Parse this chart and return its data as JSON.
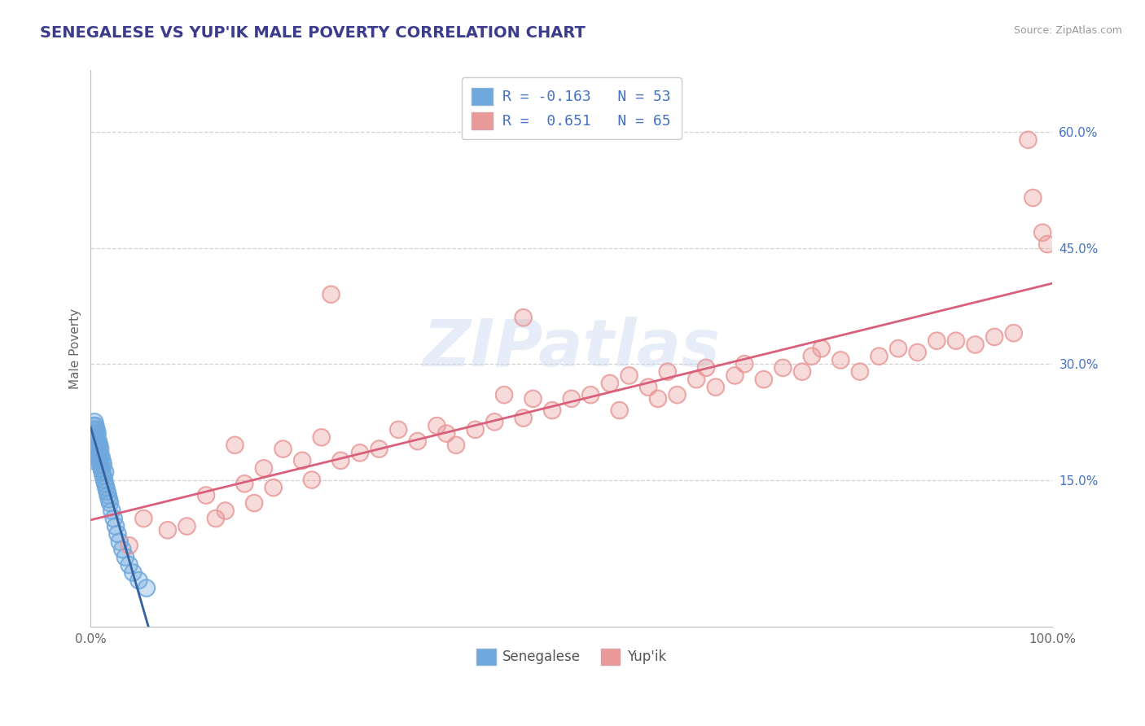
{
  "title": "SENEGALESE VS YUP'IK MALE POVERTY CORRELATION CHART",
  "source": "Source: ZipAtlas.com",
  "ylabel": "Male Poverty",
  "xlim": [
    0,
    1.0
  ],
  "ylim": [
    -0.04,
    0.68
  ],
  "ytick_labels": [
    "15.0%",
    "30.0%",
    "45.0%",
    "60.0%"
  ],
  "ytick_values": [
    0.15,
    0.3,
    0.45,
    0.6
  ],
  "legend_line1": "R = -0.163   N = 53",
  "legend_line2": "R =  0.651   N = 65",
  "color_senegalese": "#6fa8dc",
  "color_yupik": "#ea9999",
  "color_line_senegalese_solid": "#3461a0",
  "color_line_senegalese_dash": "#a8c4e0",
  "color_line_yupik": "#d9607a",
  "background_color": "#ffffff",
  "grid_color": "#cccccc",
  "title_color": "#3c3c8c",
  "axis_label_color": "#666666",
  "ytick_color": "#4472c4",
  "xtick_color": "#666666",
  "watermark": "ZIPatlas",
  "senegalese_x": [
    0.001,
    0.002,
    0.002,
    0.003,
    0.003,
    0.003,
    0.004,
    0.004,
    0.004,
    0.005,
    0.005,
    0.005,
    0.005,
    0.006,
    0.006,
    0.006,
    0.007,
    0.007,
    0.007,
    0.008,
    0.008,
    0.008,
    0.009,
    0.009,
    0.009,
    0.01,
    0.01,
    0.01,
    0.011,
    0.011,
    0.012,
    0.012,
    0.013,
    0.013,
    0.014,
    0.015,
    0.015,
    0.016,
    0.017,
    0.018,
    0.019,
    0.02,
    0.022,
    0.024,
    0.026,
    0.028,
    0.03,
    0.033,
    0.036,
    0.04,
    0.044,
    0.05,
    0.058
  ],
  "senegalese_y": [
    0.175,
    0.18,
    0.185,
    0.21,
    0.215,
    0.22,
    0.2,
    0.205,
    0.225,
    0.195,
    0.2,
    0.21,
    0.22,
    0.19,
    0.2,
    0.215,
    0.185,
    0.195,
    0.21,
    0.18,
    0.19,
    0.2,
    0.175,
    0.185,
    0.195,
    0.17,
    0.18,
    0.19,
    0.165,
    0.18,
    0.16,
    0.175,
    0.155,
    0.17,
    0.15,
    0.145,
    0.16,
    0.14,
    0.135,
    0.13,
    0.125,
    0.12,
    0.11,
    0.1,
    0.09,
    0.08,
    0.07,
    0.06,
    0.05,
    0.04,
    0.03,
    0.02,
    0.01
  ],
  "yupik_x": [
    0.04,
    0.055,
    0.08,
    0.1,
    0.12,
    0.13,
    0.14,
    0.15,
    0.16,
    0.17,
    0.18,
    0.19,
    0.2,
    0.22,
    0.23,
    0.24,
    0.26,
    0.28,
    0.3,
    0.32,
    0.34,
    0.36,
    0.37,
    0.38,
    0.4,
    0.42,
    0.43,
    0.45,
    0.46,
    0.48,
    0.5,
    0.52,
    0.54,
    0.55,
    0.56,
    0.58,
    0.59,
    0.6,
    0.61,
    0.63,
    0.64,
    0.65,
    0.67,
    0.68,
    0.7,
    0.72,
    0.74,
    0.75,
    0.76,
    0.78,
    0.8,
    0.82,
    0.84,
    0.86,
    0.88,
    0.9,
    0.92,
    0.94,
    0.96,
    0.975,
    0.98,
    0.99,
    0.995,
    0.25,
    0.45
  ],
  "yupik_y": [
    0.065,
    0.1,
    0.085,
    0.09,
    0.13,
    0.1,
    0.11,
    0.195,
    0.145,
    0.12,
    0.165,
    0.14,
    0.19,
    0.175,
    0.15,
    0.205,
    0.175,
    0.185,
    0.19,
    0.215,
    0.2,
    0.22,
    0.21,
    0.195,
    0.215,
    0.225,
    0.26,
    0.23,
    0.255,
    0.24,
    0.255,
    0.26,
    0.275,
    0.24,
    0.285,
    0.27,
    0.255,
    0.29,
    0.26,
    0.28,
    0.295,
    0.27,
    0.285,
    0.3,
    0.28,
    0.295,
    0.29,
    0.31,
    0.32,
    0.305,
    0.29,
    0.31,
    0.32,
    0.315,
    0.33,
    0.33,
    0.325,
    0.335,
    0.34,
    0.59,
    0.515,
    0.47,
    0.455,
    0.39,
    0.36
  ]
}
